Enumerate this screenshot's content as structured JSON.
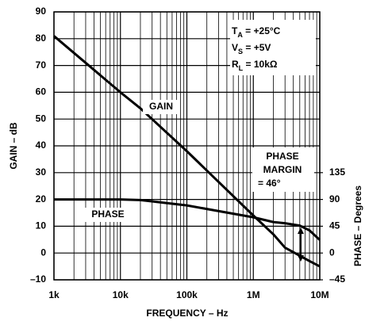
{
  "chart_data": {
    "type": "line",
    "xlabel": "FREQUENCY – Hz",
    "ylabel": "GAIN – dB",
    "y2label": "PHASE – Degrees",
    "log_x": true,
    "grid": true,
    "x": [
      1000,
      10000,
      20000,
      100000,
      1000000,
      2000000,
      3000000,
      5000000,
      7000000,
      10000000
    ],
    "series": [
      {
        "name": "GAIN",
        "color": "#000000",
        "axis": "y",
        "values": [
          81,
          60,
          54,
          38,
          14,
          7,
          2,
          -1,
          -3,
          -5
        ]
      },
      {
        "name": "PHASE",
        "color": "#000000",
        "axis": "y2",
        "values": [
          90,
          90,
          89,
          80,
          60,
          52,
          50,
          46,
          38,
          22
        ]
      }
    ],
    "xlim": [
      1000,
      10000000
    ],
    "xticks": [
      {
        "value": 1000,
        "label": "1k"
      },
      {
        "value": 10000,
        "label": "10k"
      },
      {
        "value": 100000,
        "label": "100k"
      },
      {
        "value": 1000000,
        "label": "1M"
      },
      {
        "value": 10000000,
        "label": "10M"
      }
    ],
    "ylim": [
      -10,
      90
    ],
    "yticks": [
      {
        "value": -10,
        "label": "–10"
      },
      0,
      10,
      20,
      30,
      40,
      50,
      60,
      70,
      80,
      90
    ],
    "y2lim": [
      -45,
      405
    ],
    "y2ticks": [
      {
        "value": -45,
        "label": "–45"
      },
      0,
      45,
      90,
      135
    ],
    "annotations": {
      "phase_margin": [
        "PHASE",
        "MARGIN",
        "= 46°"
      ],
      "conditions": [
        {
          "symbol": "T",
          "sub": "A",
          "text": " = +25°C"
        },
        {
          "symbol": "V",
          "sub": "S",
          "text": " = +5V"
        },
        {
          "symbol": "R",
          "sub": "L",
          "text": " = 10kΩ"
        }
      ]
    }
  }
}
